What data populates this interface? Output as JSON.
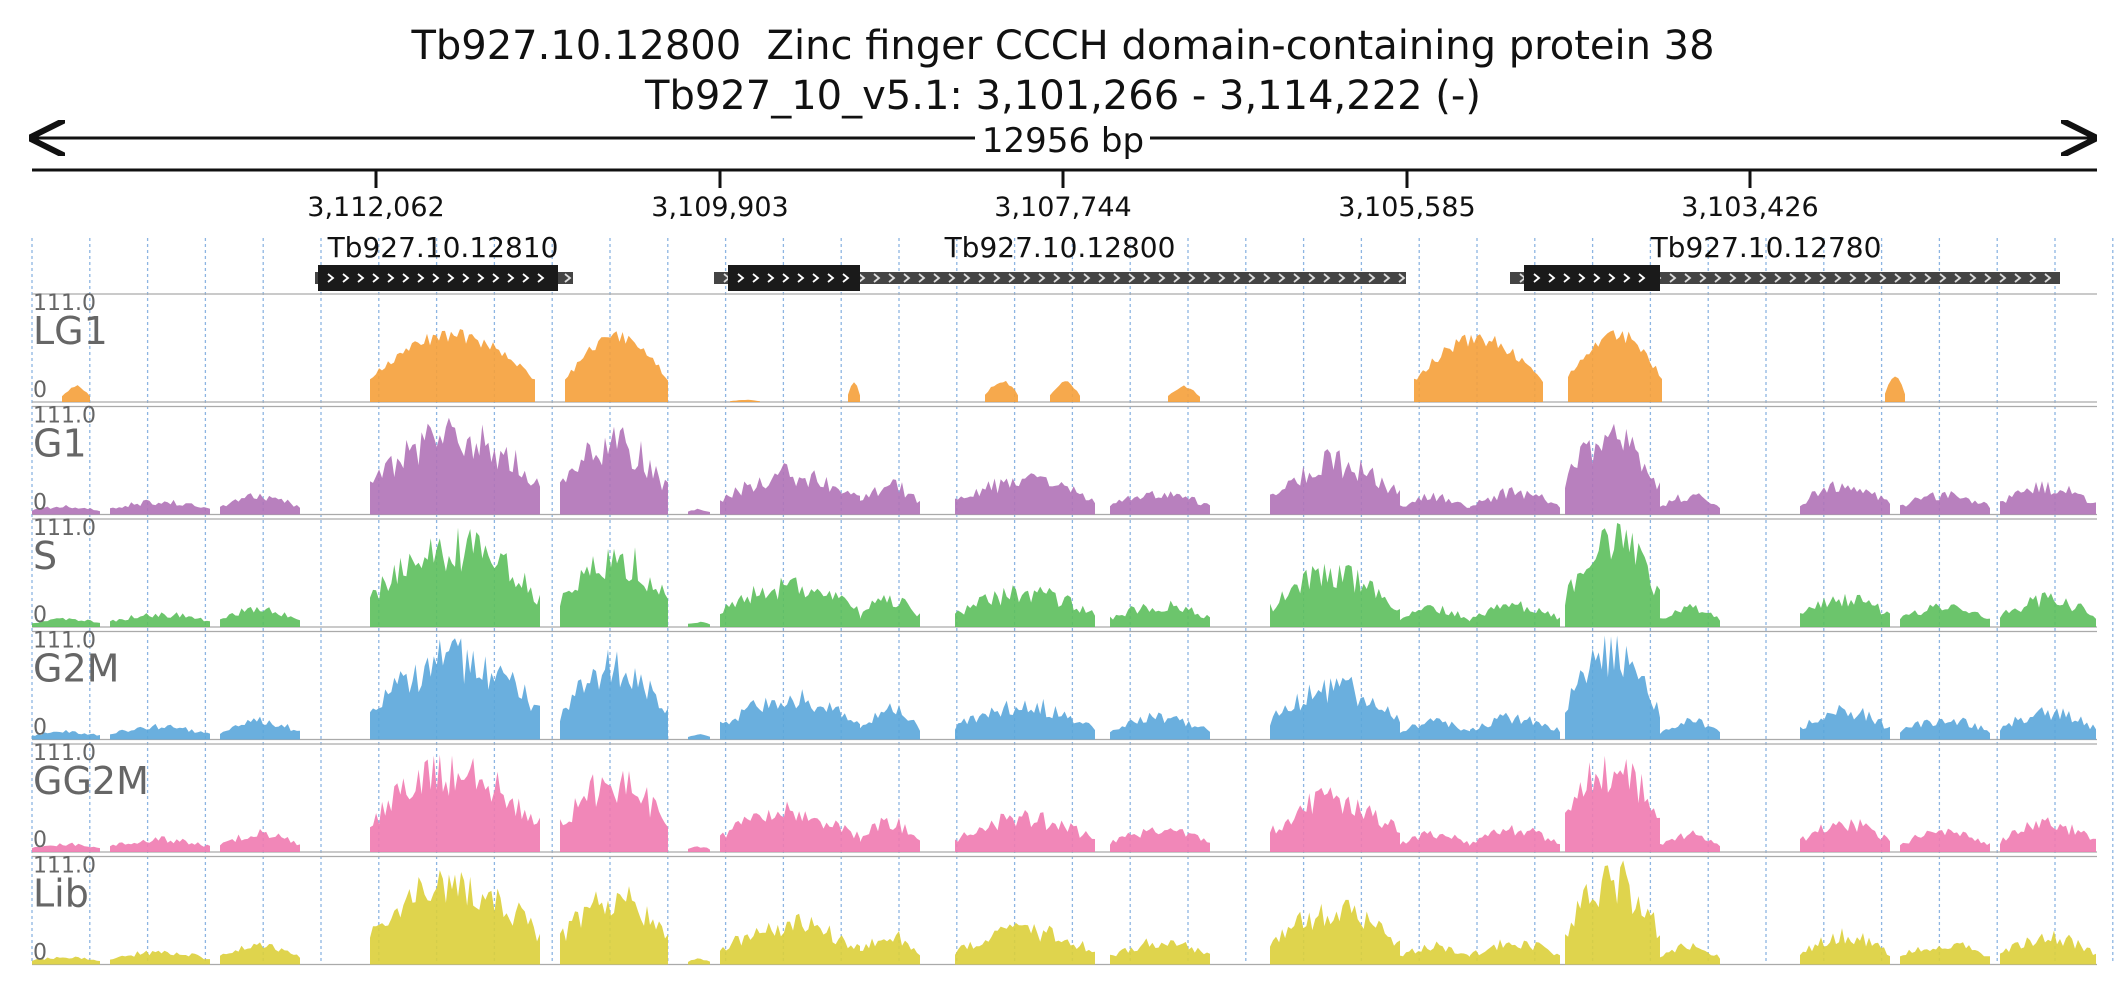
{
  "header": {
    "gene_title": "Tb927.10.12800  Zinc finger CCCH domain-containing protein 38",
    "locus": "Tb927_10_v5.1: 3,101,266 - 3,114,222 (-)"
  },
  "ruler": {
    "length_label": "12956 bp",
    "ticks": [
      "3,112,062",
      "3,109,903",
      "3,107,744",
      "3,105,585",
      "3,103,426"
    ]
  },
  "genes": [
    {
      "name": "Tb927.10.12810",
      "label": "Tb927.10.12810"
    },
    {
      "name": "Tb927.10.12800",
      "label": "Tb927.10.12800"
    },
    {
      "name": "Tb927.10.12780",
      "label": "Tb927.10.12780"
    }
  ],
  "track_scale": {
    "max_label": "111.0",
    "min_label": "0"
  },
  "tracks": [
    {
      "id": "lg1",
      "label": "LG1",
      "color": "#f5a03a"
    },
    {
      "id": "g1",
      "label": "G1",
      "color": "#b072b7"
    },
    {
      "id": "s",
      "label": "S",
      "color": "#5cbf5c"
    },
    {
      "id": "g2m",
      "label": "G2M",
      "color": "#5aa6da"
    },
    {
      "id": "gg2m",
      "label": "GG2M",
      "color": "#f07ab0"
    },
    {
      "id": "lib",
      "label": "Lib",
      "color": "#dccf3a"
    }
  ],
  "colors": {
    "cds": "#1a1a1a",
    "utr": "#444444",
    "grid": "#7aa9dd",
    "track_divider": "#aaaaaa"
  }
}
